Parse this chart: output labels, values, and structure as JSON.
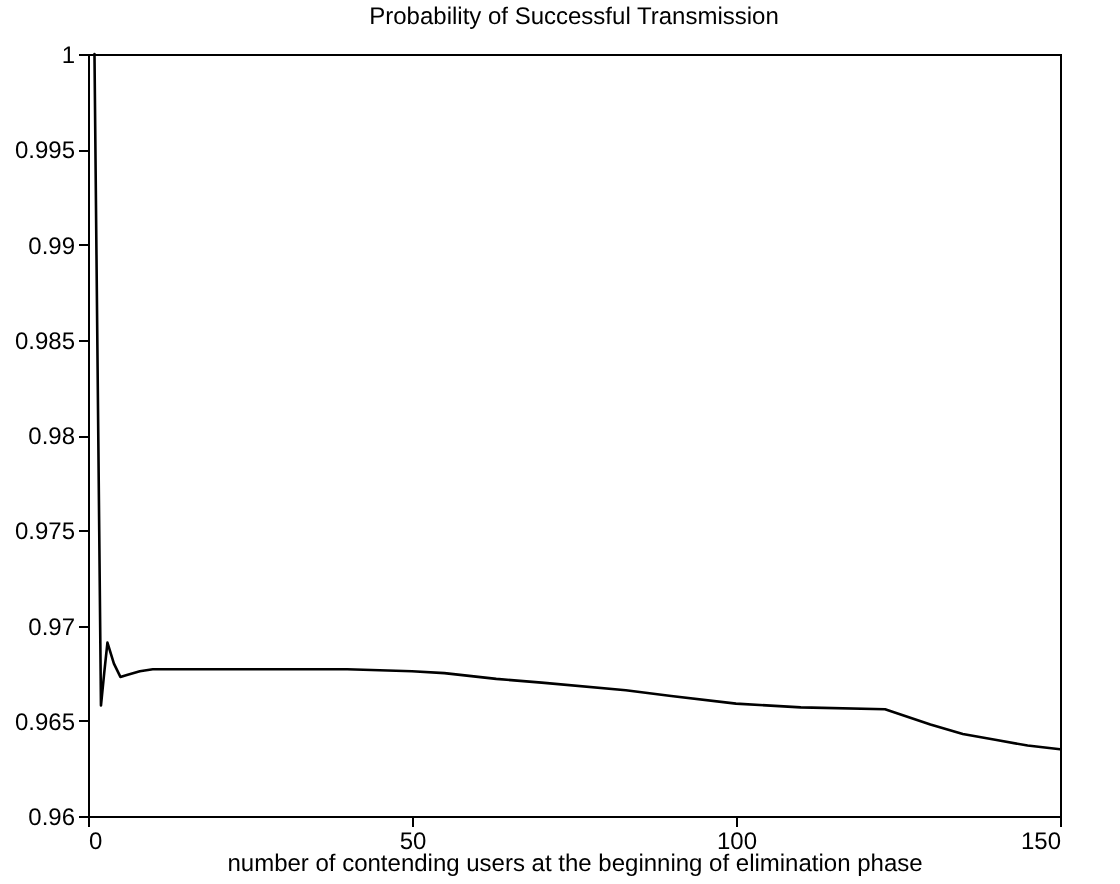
{
  "chart_data": {
    "type": "line",
    "title": "Probability of Successful Transmission",
    "xlabel": "number of contending users at the beginning of elimination phase",
    "x": [
      1,
      2,
      2.5,
      3,
      4,
      5,
      6,
      8,
      10,
      20,
      30,
      40,
      50,
      55,
      63,
      70,
      83,
      90,
      100,
      110,
      123,
      130,
      135,
      140,
      145,
      150
    ],
    "values": [
      1,
      0.9658,
      0.9675,
      0.9691,
      0.968,
      0.9673,
      0.9674,
      0.9676,
      0.9677,
      0.9677,
      0.9677,
      0.9677,
      0.9676,
      0.9675,
      0.9672,
      0.967,
      0.9666,
      0.9663,
      0.9659,
      0.9657,
      0.9656,
      0.9648,
      0.9643,
      0.964,
      0.9637,
      0.9635
    ],
    "color": "#000000",
    "xlim": [
      0,
      150
    ],
    "xticks": [
      0,
      50,
      100,
      150
    ],
    "ylim": [
      0.96,
      1
    ],
    "yticks": [
      0.96,
      0.965,
      0.97,
      0.975,
      0.98,
      0.985,
      0.99,
      0.995,
      1
    ],
    "grid": false,
    "line_style": "solid"
  }
}
